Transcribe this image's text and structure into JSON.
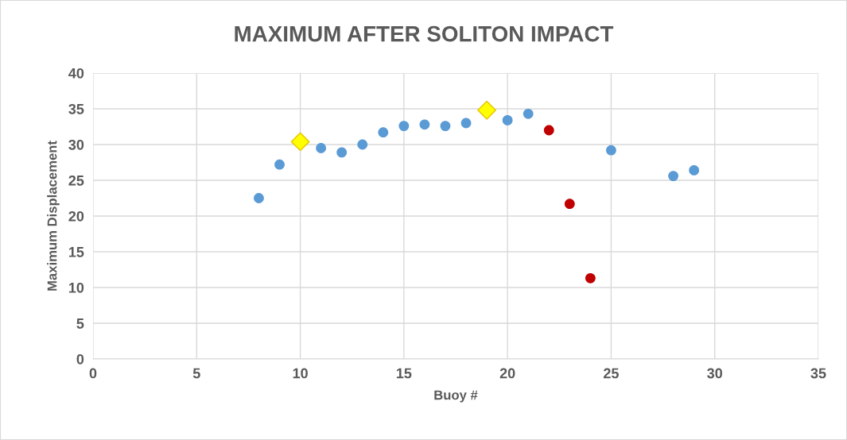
{
  "chart_data": {
    "type": "scatter",
    "title": "MAXIMUM AFTER SOLITON IMPACT",
    "xlabel": "Buoy #",
    "ylabel": "Maximum Displacement",
    "series": [
      {
        "color": "#5b9bd5",
        "marker": "circle",
        "x": [
          8,
          9,
          11,
          12,
          13,
          14,
          15,
          16,
          17,
          18,
          20,
          21,
          25,
          28,
          29
        ],
        "values": [
          22.5,
          27.2,
          29.5,
          28.9,
          30.0,
          31.7,
          32.6,
          32.8,
          32.6,
          33.0,
          33.4,
          34.3,
          29.2,
          25.6,
          26.4
        ]
      },
      {
        "color": "#ffff00",
        "marker": "diamond",
        "x": [
          10,
          19
        ],
        "values": [
          30.4,
          34.8
        ]
      },
      {
        "color": "#c00000",
        "marker": "circle",
        "x": [
          22,
          23,
          24
        ],
        "values": [
          32.0,
          21.7,
          11.3
        ]
      }
    ],
    "xlim": [
      0,
      35
    ],
    "xticks": [
      0,
      5,
      10,
      15,
      20,
      25,
      30,
      35
    ],
    "ylim": [
      0,
      40
    ],
    "yticks": [
      0,
      5,
      10,
      15,
      20,
      25,
      30,
      35,
      40
    ],
    "grid": true,
    "legend": false
  }
}
